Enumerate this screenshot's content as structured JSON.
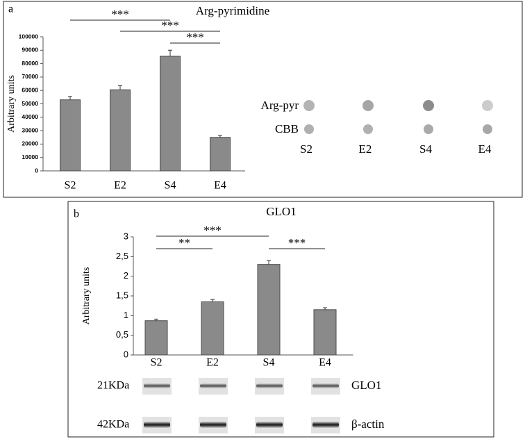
{
  "chart_data": [
    {
      "type": "bar",
      "label": "a",
      "title": "Arg-pyrimidine",
      "ylabel": "Arbitrary units",
      "categories": [
        "S2",
        "E2",
        "S4",
        "E4"
      ],
      "values": [
        53000,
        60500,
        85500,
        25000
      ],
      "errors": [
        2500,
        3000,
        4500,
        1500
      ],
      "color": "#8a8a8a",
      "ylim": [
        0,
        100000
      ],
      "yticks": [
        0,
        10000,
        20000,
        30000,
        40000,
        50000,
        60000,
        70000,
        80000,
        90000,
        100000
      ],
      "annotations": [
        {
          "label": "***",
          "from": "S2",
          "to": "S4"
        },
        {
          "label": "***",
          "from": "E2",
          "to": "E4"
        },
        {
          "label": "***",
          "from": "S4",
          "to": "E4"
        }
      ],
      "blot": {
        "lanes": [
          "S2",
          "E2",
          "S4",
          "E4"
        ],
        "rows": [
          {
            "label": "Arg-pyr",
            "colors": [
              "#b4b4b4",
              "#a6a6a6",
              "#8c8c8c",
              "#cccccc"
            ]
          },
          {
            "label": "CBB",
            "colors": [
              "#b0b0b0",
              "#b0b0b0",
              "#aaaaaa",
              "#a8a8a8"
            ]
          }
        ]
      }
    },
    {
      "type": "bar",
      "label": "b",
      "title": "GLO1",
      "ylabel": "Arbitrary units",
      "categories": [
        "S2",
        "E2",
        "S4",
        "E4"
      ],
      "values": [
        0.87,
        1.35,
        2.3,
        1.15
      ],
      "errors": [
        0.04,
        0.06,
        0.1,
        0.05
      ],
      "color": "#8a8a8a",
      "ylim": [
        0,
        3
      ],
      "yticks": [
        0,
        {
          "value": 0.5,
          "label": "0,5"
        },
        1,
        {
          "value": 1.5,
          "label": "1,5"
        },
        2,
        {
          "value": 2.5,
          "label": "2,5"
        },
        3
      ],
      "annotations": [
        {
          "label": "***",
          "from": "S2",
          "to": "S4"
        },
        {
          "label": "**",
          "from": "S2",
          "to": "E2"
        },
        {
          "label": "***",
          "from": "S4",
          "to": "E4"
        }
      ],
      "western": {
        "rows": [
          {
            "size": "21KDa",
            "name": "GLO1"
          },
          {
            "size": "42KDa",
            "name": "β-actin"
          }
        ]
      }
    }
  ]
}
